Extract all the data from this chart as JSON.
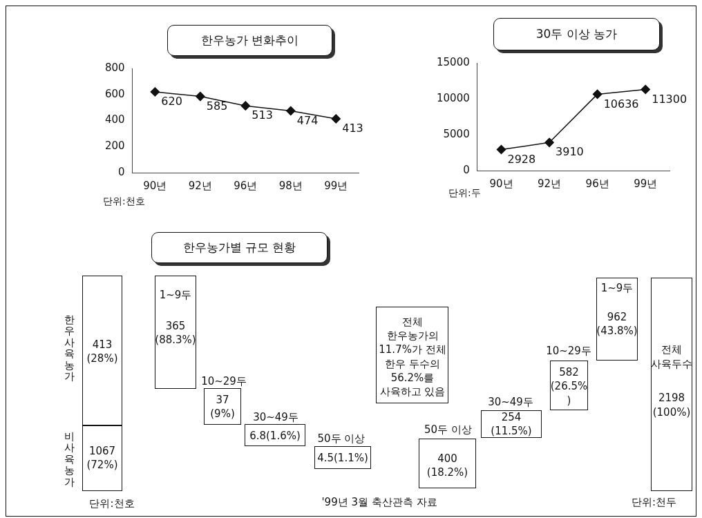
{
  "chart_data": [
    {
      "type": "line",
      "title": "한우농가 변화추이",
      "categories": [
        "90년",
        "92년",
        "96년",
        "98년",
        "99년"
      ],
      "values": [
        620,
        585,
        513,
        474,
        413
      ],
      "color": "#111111",
      "ylim": [
        0,
        800
      ],
      "yticks": [
        0,
        200,
        400,
        600,
        800
      ],
      "marker": "diamond",
      "data_labels": true,
      "annotations": [
        "단위:천호"
      ]
    },
    {
      "type": "line",
      "title": "30두 이상 농가",
      "categories": [
        "90년",
        "92년",
        "96년",
        "99년"
      ],
      "values": [
        2928,
        3910,
        10636,
        11300
      ],
      "color": "#111111",
      "ylim": [
        0,
        15000
      ],
      "yticks": [
        0,
        5000,
        10000,
        15000
      ],
      "marker": "diamond",
      "data_labels": true,
      "annotations": [
        "단위:두"
      ]
    },
    {
      "type": "other",
      "title": "한우농가별 규모 현황",
      "annotations": [
        "한우사육농가",
        "413 (28%)",
        "비사육농가",
        "1067 (72%)",
        "1~9두",
        "365 (88.3%)",
        "10~29두",
        "37 (9%)",
        "30~49두",
        "6.8(1.6%)",
        "50두 이상",
        "4.5(1.1%)",
        "전체 한우농가의 11.7%가 전체 한우 두수의 56.2%를 사육하고 있음",
        "50두 이상",
        "400 (18.2%)",
        "30~49두",
        "254 (11.5%)",
        "10~29두",
        "582 (26.5%)",
        "1~9두",
        "962 (43.8%)",
        "전체 사육두수",
        "2198 (100%)",
        "단위:천호",
        "'99년 3월 축산관측 자료",
        "단위:천두"
      ]
    }
  ]
}
